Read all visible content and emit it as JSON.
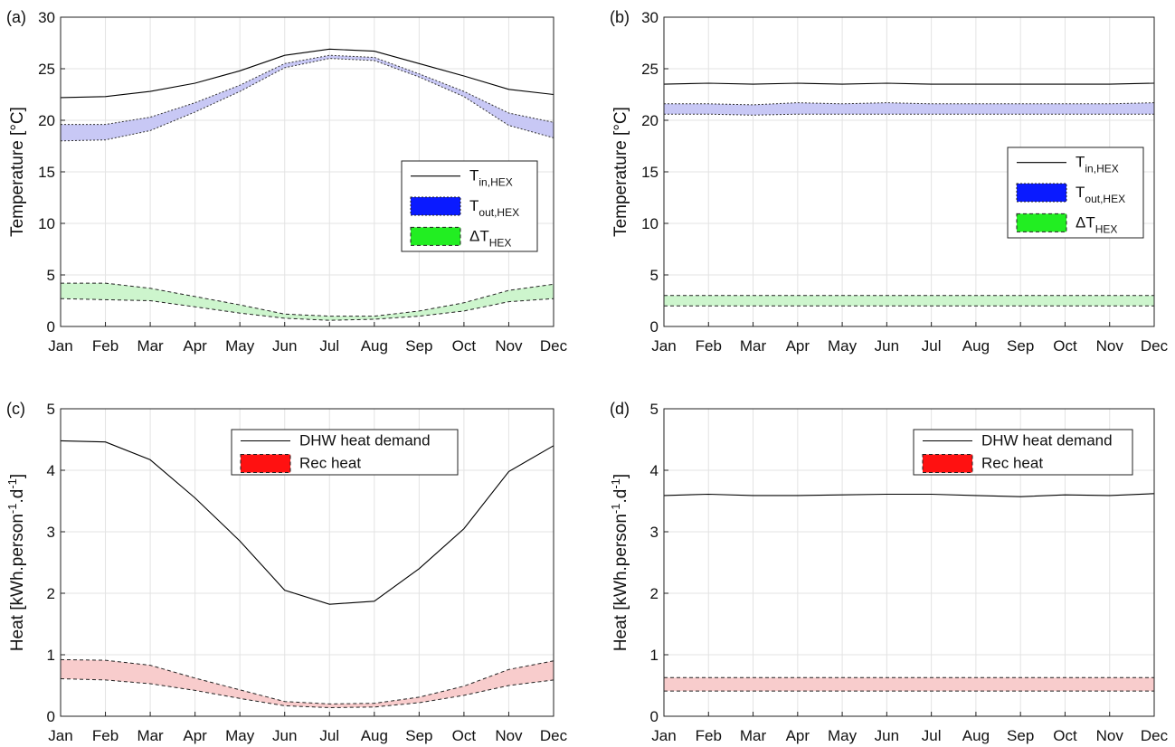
{
  "months": [
    "Jan",
    "Feb",
    "Mar",
    "Apr",
    "May",
    "Jun",
    "Jul",
    "Aug",
    "Sep",
    "Oct",
    "Nov",
    "Dec"
  ],
  "colors": {
    "t_out_fill": "#c8c8f5",
    "t_out_legend": "#0a1aff",
    "dt_fill": "#cdf5cd",
    "dt_legend": "#22ee22",
    "rec_fill": "#f8cccc",
    "rec_legend": "#ff1111",
    "grid": "#e3e3e3"
  },
  "chart_data": [
    {
      "panel": "(a)",
      "type": "line",
      "ylabel": "Temperature [°C]",
      "ylim": [
        0,
        30
      ],
      "yticks": [
        0,
        5,
        10,
        15,
        20,
        25,
        30
      ],
      "legend_position": "middle-right",
      "legend": [
        {
          "main": "T",
          "sub": "in,HEX",
          "style": "line"
        },
        {
          "main": "T",
          "sub": "out,HEX",
          "style": "t_out"
        },
        {
          "main": "ΔT",
          "sub": "HEX",
          "style": "dt"
        }
      ],
      "series": [
        {
          "name": "T",
          "kind": "line",
          "values": [
            22.2,
            22.3,
            22.8,
            23.6,
            24.8,
            26.3,
            26.9,
            26.7,
            25.5,
            24.3,
            23.0,
            22.5
          ]
        },
        {
          "name": "T",
          "kind": "band",
          "style": "t_out",
          "upper": [
            19.6,
            19.6,
            20.3,
            21.7,
            23.4,
            25.5,
            26.3,
            26.1,
            24.5,
            22.8,
            20.7,
            19.8
          ],
          "lower": [
            18.0,
            18.1,
            19.0,
            20.8,
            22.8,
            25.1,
            26.0,
            25.8,
            24.2,
            22.3,
            19.5,
            18.3
          ]
        },
        {
          "name": "ΔT",
          "kind": "band",
          "style": "dt",
          "upper": [
            4.2,
            4.2,
            3.7,
            2.9,
            2.1,
            1.2,
            1.0,
            1.0,
            1.5,
            2.3,
            3.5,
            4.1
          ],
          "lower": [
            2.7,
            2.6,
            2.5,
            1.9,
            1.3,
            0.8,
            0.6,
            0.7,
            1.0,
            1.5,
            2.4,
            2.7
          ]
        }
      ]
    },
    {
      "panel": "(b)",
      "type": "line",
      "ylabel": "Temperature [°C]",
      "ylim": [
        0,
        30
      ],
      "yticks": [
        0,
        5,
        10,
        15,
        20,
        25,
        30
      ],
      "legend_position": "middle-right",
      "legend": [
        {
          "main": "T",
          "sub": "in,HEX",
          "style": "line"
        },
        {
          "main": "T",
          "sub": "out,HEX",
          "style": "t_out"
        },
        {
          "main": "ΔT",
          "sub": "HEX",
          "style": "dt"
        }
      ],
      "series": [
        {
          "name": "T",
          "kind": "line",
          "values": [
            23.5,
            23.6,
            23.5,
            23.6,
            23.5,
            23.6,
            23.5,
            23.5,
            23.5,
            23.5,
            23.5,
            23.6
          ]
        },
        {
          "name": "T",
          "kind": "band",
          "style": "t_out",
          "upper": [
            21.6,
            21.6,
            21.5,
            21.7,
            21.6,
            21.7,
            21.6,
            21.6,
            21.6,
            21.6,
            21.6,
            21.7
          ],
          "lower": [
            20.6,
            20.6,
            20.5,
            20.6,
            20.6,
            20.6,
            20.6,
            20.6,
            20.6,
            20.6,
            20.6,
            20.6
          ]
        },
        {
          "name": "ΔT",
          "kind": "band",
          "style": "dt",
          "upper": [
            3.0,
            3.0,
            3.0,
            3.0,
            3.0,
            3.0,
            3.0,
            3.0,
            3.0,
            3.0,
            3.0,
            3.0
          ],
          "lower": [
            2.0,
            2.0,
            2.0,
            2.0,
            2.0,
            2.0,
            2.0,
            2.0,
            2.0,
            2.0,
            2.0,
            2.0
          ]
        }
      ]
    },
    {
      "panel": "(c)",
      "type": "line",
      "ylabel": "Heat [kWh.person",
      "ylabel_sup1": "-1",
      "ylabel_mid": ".d",
      "ylabel_sup2": "-1",
      "ylabel_end": "]",
      "ylim": [
        0,
        5
      ],
      "yticks": [
        0,
        1,
        2,
        3,
        4,
        5
      ],
      "legend_position": "top-middle",
      "legend": [
        {
          "main": "DHW heat demand",
          "sub": "",
          "style": "line"
        },
        {
          "main": "Rec heat",
          "sub": "",
          "style": "rec"
        }
      ],
      "series": [
        {
          "name": "DHW heat demand",
          "kind": "line",
          "values": [
            4.48,
            4.46,
            4.17,
            3.55,
            2.85,
            2.05,
            1.82,
            1.87,
            2.4,
            3.05,
            3.98,
            4.4
          ]
        },
        {
          "name": "Rec heat",
          "kind": "band",
          "style": "rec",
          "upper": [
            0.92,
            0.91,
            0.83,
            0.62,
            0.43,
            0.24,
            0.2,
            0.21,
            0.31,
            0.49,
            0.76,
            0.9
          ],
          "lower": [
            0.61,
            0.59,
            0.53,
            0.42,
            0.29,
            0.17,
            0.14,
            0.15,
            0.22,
            0.34,
            0.5,
            0.59
          ]
        }
      ]
    },
    {
      "panel": "(d)",
      "type": "line",
      "ylabel": "Heat [kWh.person",
      "ylabel_sup1": "-1",
      "ylabel_mid": ".d",
      "ylabel_sup2": "-1",
      "ylabel_end": "]",
      "ylim": [
        0,
        5
      ],
      "yticks": [
        0,
        1,
        2,
        3,
        4,
        5
      ],
      "legend_position": "top-right",
      "legend": [
        {
          "main": "DHW heat demand",
          "sub": "",
          "style": "line"
        },
        {
          "main": "Rec heat",
          "sub": "",
          "style": "rec"
        }
      ],
      "series": [
        {
          "name": "DHW heat demand",
          "kind": "line",
          "values": [
            3.59,
            3.61,
            3.59,
            3.59,
            3.6,
            3.61,
            3.61,
            3.59,
            3.57,
            3.6,
            3.59,
            3.62
          ]
        },
        {
          "name": "Rec heat",
          "kind": "band",
          "style": "rec",
          "upper": [
            0.63,
            0.63,
            0.63,
            0.63,
            0.63,
            0.63,
            0.63,
            0.63,
            0.63,
            0.63,
            0.63,
            0.63
          ],
          "lower": [
            0.41,
            0.41,
            0.41,
            0.41,
            0.41,
            0.41,
            0.41,
            0.41,
            0.41,
            0.41,
            0.41,
            0.41
          ]
        }
      ]
    }
  ]
}
